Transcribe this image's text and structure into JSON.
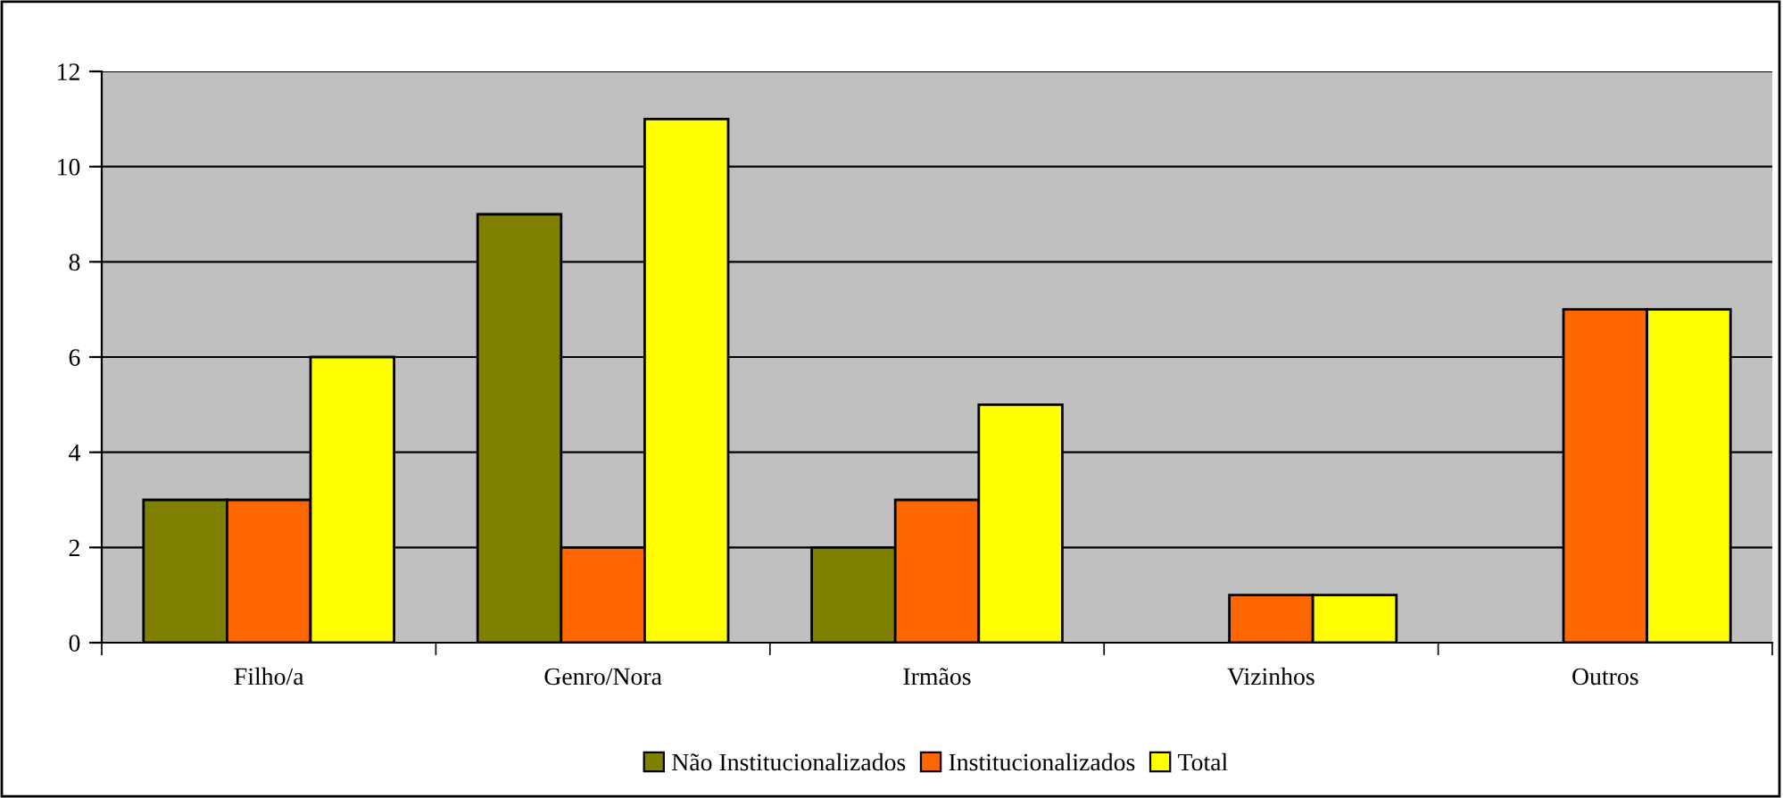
{
  "chart_data": {
    "type": "bar",
    "categories": [
      "Filho/a",
      "Genro/Nora",
      "Irmãos",
      "Vizinhos",
      "Outros"
    ],
    "series": [
      {
        "name": "Não Institucionalizados",
        "color": "#808000",
        "values": [
          3,
          9,
          2,
          null,
          null
        ]
      },
      {
        "name": "Institucionalizados",
        "color": "#ff6600",
        "values": [
          3,
          2,
          3,
          1,
          7
        ]
      },
      {
        "name": "Total",
        "color": "#ffff00",
        "values": [
          6,
          11,
          5,
          1,
          7
        ]
      }
    ],
    "ylim": [
      0,
      12
    ],
    "yticks": [
      0,
      2,
      4,
      6,
      8,
      10,
      12
    ],
    "grid": "y",
    "legend": "bottom"
  }
}
